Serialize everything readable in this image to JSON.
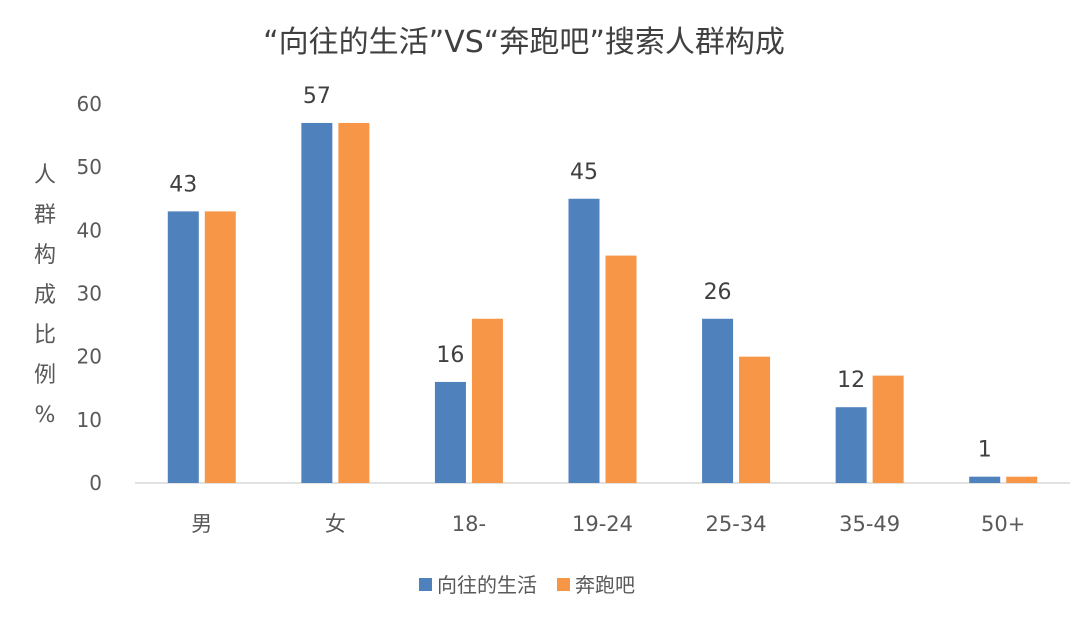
{
  "chart_data": {
    "type": "bar",
    "title": "“向往的生活”VS“奔跑吧”搜索人群构成",
    "ylabel": "人群构成比例%",
    "ylabel_chars": [
      "人",
      "群",
      "构",
      "成",
      "比",
      "例",
      "%"
    ],
    "categories": [
      "男",
      "女",
      "18-",
      "19-24",
      "25-34",
      "35-49",
      "50+"
    ],
    "series": [
      {
        "name": "向往的生活",
        "values": [
          43,
          57,
          16,
          45,
          26,
          12,
          1
        ],
        "color": "#4F81BD",
        "labels": [
          "43",
          "57",
          "16",
          "45",
          "26",
          "12",
          "1"
        ]
      },
      {
        "name": "奔跑吧",
        "values": [
          43,
          57,
          26,
          36,
          20,
          17,
          1
        ],
        "color": "#F79646"
      }
    ],
    "ylim": [
      0,
      60
    ],
    "yticks": [
      "0",
      "10",
      "20",
      "30",
      "40",
      "50",
      "60"
    ],
    "grid": false,
    "legend_position": "bottom"
  }
}
